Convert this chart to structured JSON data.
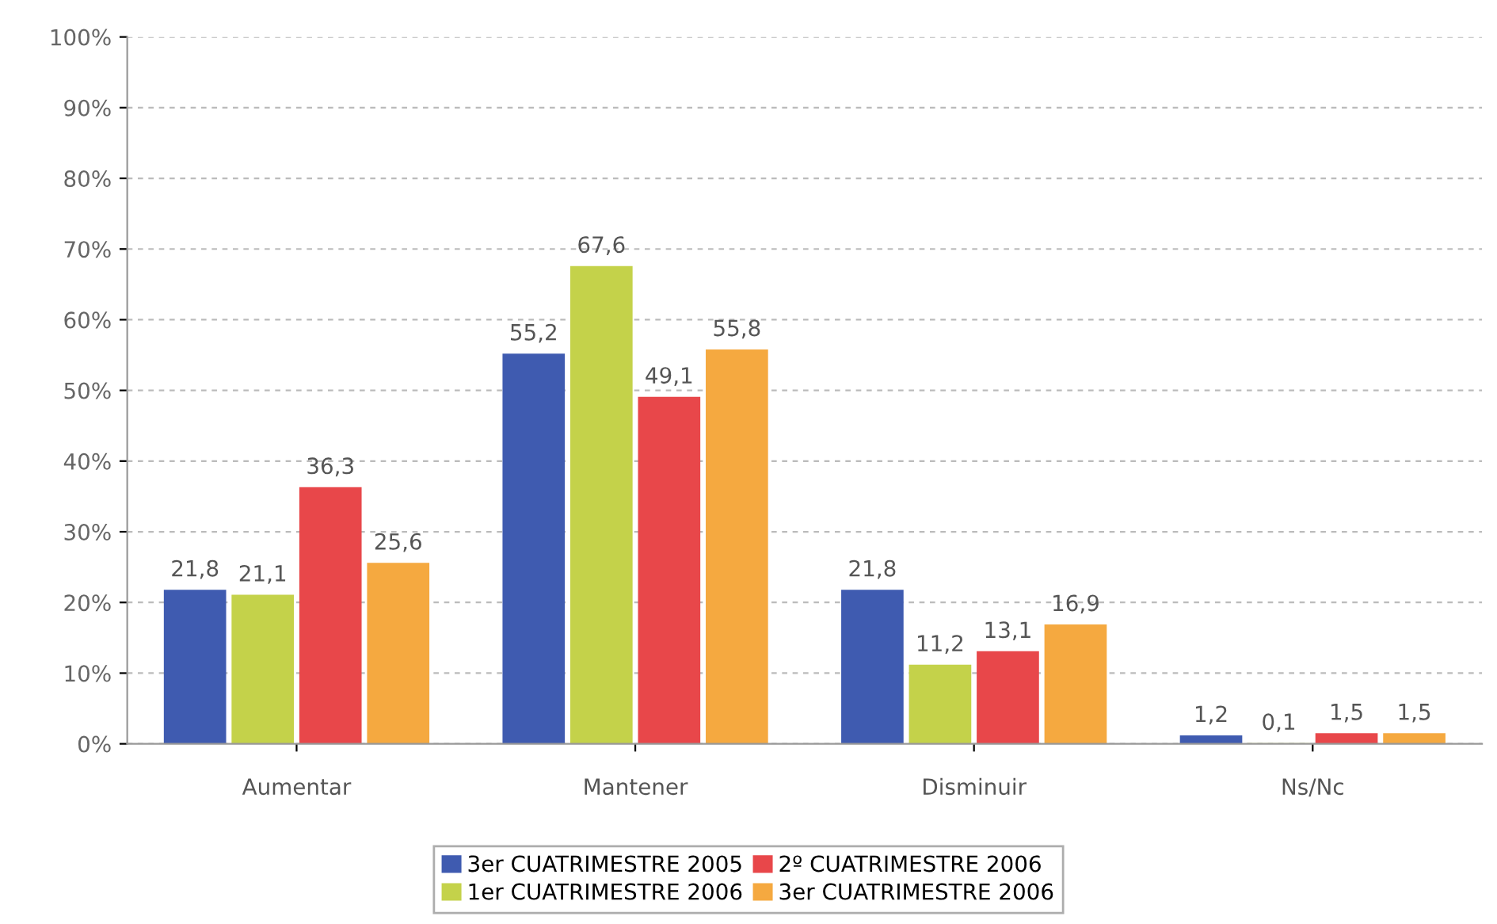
{
  "chart_data": {
    "type": "bar",
    "categories": [
      "Aumentar",
      "Mantener",
      "Disminuir",
      "Ns/Nc"
    ],
    "series": [
      {
        "name": "3er CUATRIMESTRE 2005",
        "color": "#3f5bb0",
        "values": [
          21.8,
          55.2,
          21.8,
          1.2
        ],
        "value_labels": [
          "21,8",
          "55,2",
          "21,8",
          "1,2"
        ]
      },
      {
        "name": "1er CUATRIMESTRE 2006",
        "color": "#c4d24a",
        "values": [
          21.1,
          67.6,
          11.2,
          0.1
        ],
        "value_labels": [
          "21,1",
          "67,6",
          "11,2",
          "0,1"
        ]
      },
      {
        "name": "2º CUATRIMESTRE 2006",
        "color": "#e8474a",
        "values": [
          36.3,
          49.1,
          13.1,
          1.5
        ],
        "value_labels": [
          "36,3",
          "49,1",
          "13,1",
          "1,5"
        ]
      },
      {
        "name": "3er CUATRIMESTRE 2006",
        "color": "#f5a940",
        "values": [
          25.6,
          55.8,
          16.9,
          1.5
        ],
        "value_labels": [
          "25,6",
          "55,8",
          "16,9",
          "1,5"
        ]
      }
    ],
    "ylim": [
      0,
      100
    ],
    "yticks": [
      {
        "value": 0,
        "label": "0%"
      },
      {
        "value": 10,
        "label": "10%"
      },
      {
        "value": 20,
        "label": "20%"
      },
      {
        "value": 30,
        "label": "30%"
      },
      {
        "value": 40,
        "label": "40%"
      },
      {
        "value": 50,
        "label": "50%"
      },
      {
        "value": 60,
        "label": "60%"
      },
      {
        "value": 70,
        "label": "70%"
      },
      {
        "value": 80,
        "label": "80%"
      },
      {
        "value": 90,
        "label": "90%"
      },
      {
        "value": 100,
        "label": "100%"
      }
    ],
    "grid": "y",
    "legend": "bottom"
  }
}
